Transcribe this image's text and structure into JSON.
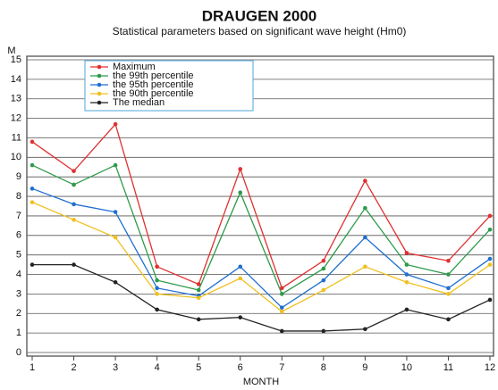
{
  "chart_data": {
    "type": "line",
    "title": "DRAUGEN 2000",
    "subtitle": "Statistical parameters based on significant wave height (Hm0)",
    "y_label": "M",
    "x_label": "MONTH",
    "x": [
      1,
      2,
      3,
      4,
      5,
      6,
      7,
      8,
      9,
      10,
      11,
      12
    ],
    "xlim": [
      1,
      12
    ],
    "xticks": [
      1,
      2,
      3,
      4,
      5,
      6,
      7,
      8,
      9,
      10,
      11,
      12
    ],
    "ylim": [
      0,
      15
    ],
    "yticks": [
      0,
      1,
      2,
      3,
      4,
      5,
      6,
      7,
      8,
      9,
      10,
      11,
      12,
      13,
      14,
      15
    ],
    "grid": true,
    "legend": "upper left",
    "series": [
      {
        "name": "Maximum",
        "color": "#e03030",
        "values": [
          10.8,
          9.3,
          11.7,
          4.4,
          3.5,
          9.4,
          3.3,
          4.7,
          8.8,
          5.1,
          4.7,
          7.0
        ]
      },
      {
        "name": "the 99th percentile",
        "color": "#2e9a4a",
        "values": [
          9.6,
          8.6,
          9.6,
          3.7,
          3.2,
          8.2,
          3.0,
          4.3,
          7.4,
          4.5,
          4.0,
          6.3
        ]
      },
      {
        "name": "the 95th percentile",
        "color": "#1f6fd0",
        "values": [
          8.4,
          7.6,
          7.2,
          3.3,
          2.9,
          4.4,
          2.3,
          3.7,
          5.9,
          4.0,
          3.3,
          4.8
        ]
      },
      {
        "name": "the 90th percentile",
        "color": "#f0c020",
        "values": [
          7.7,
          6.8,
          5.9,
          3.0,
          2.8,
          3.8,
          2.1,
          3.2,
          4.4,
          3.6,
          3.0,
          4.5
        ]
      },
      {
        "name": "The median",
        "color": "#222222",
        "values": [
          4.5,
          4.5,
          3.6,
          2.2,
          1.7,
          1.8,
          1.1,
          1.1,
          1.2,
          2.2,
          1.7,
          2.7
        ]
      }
    ]
  }
}
